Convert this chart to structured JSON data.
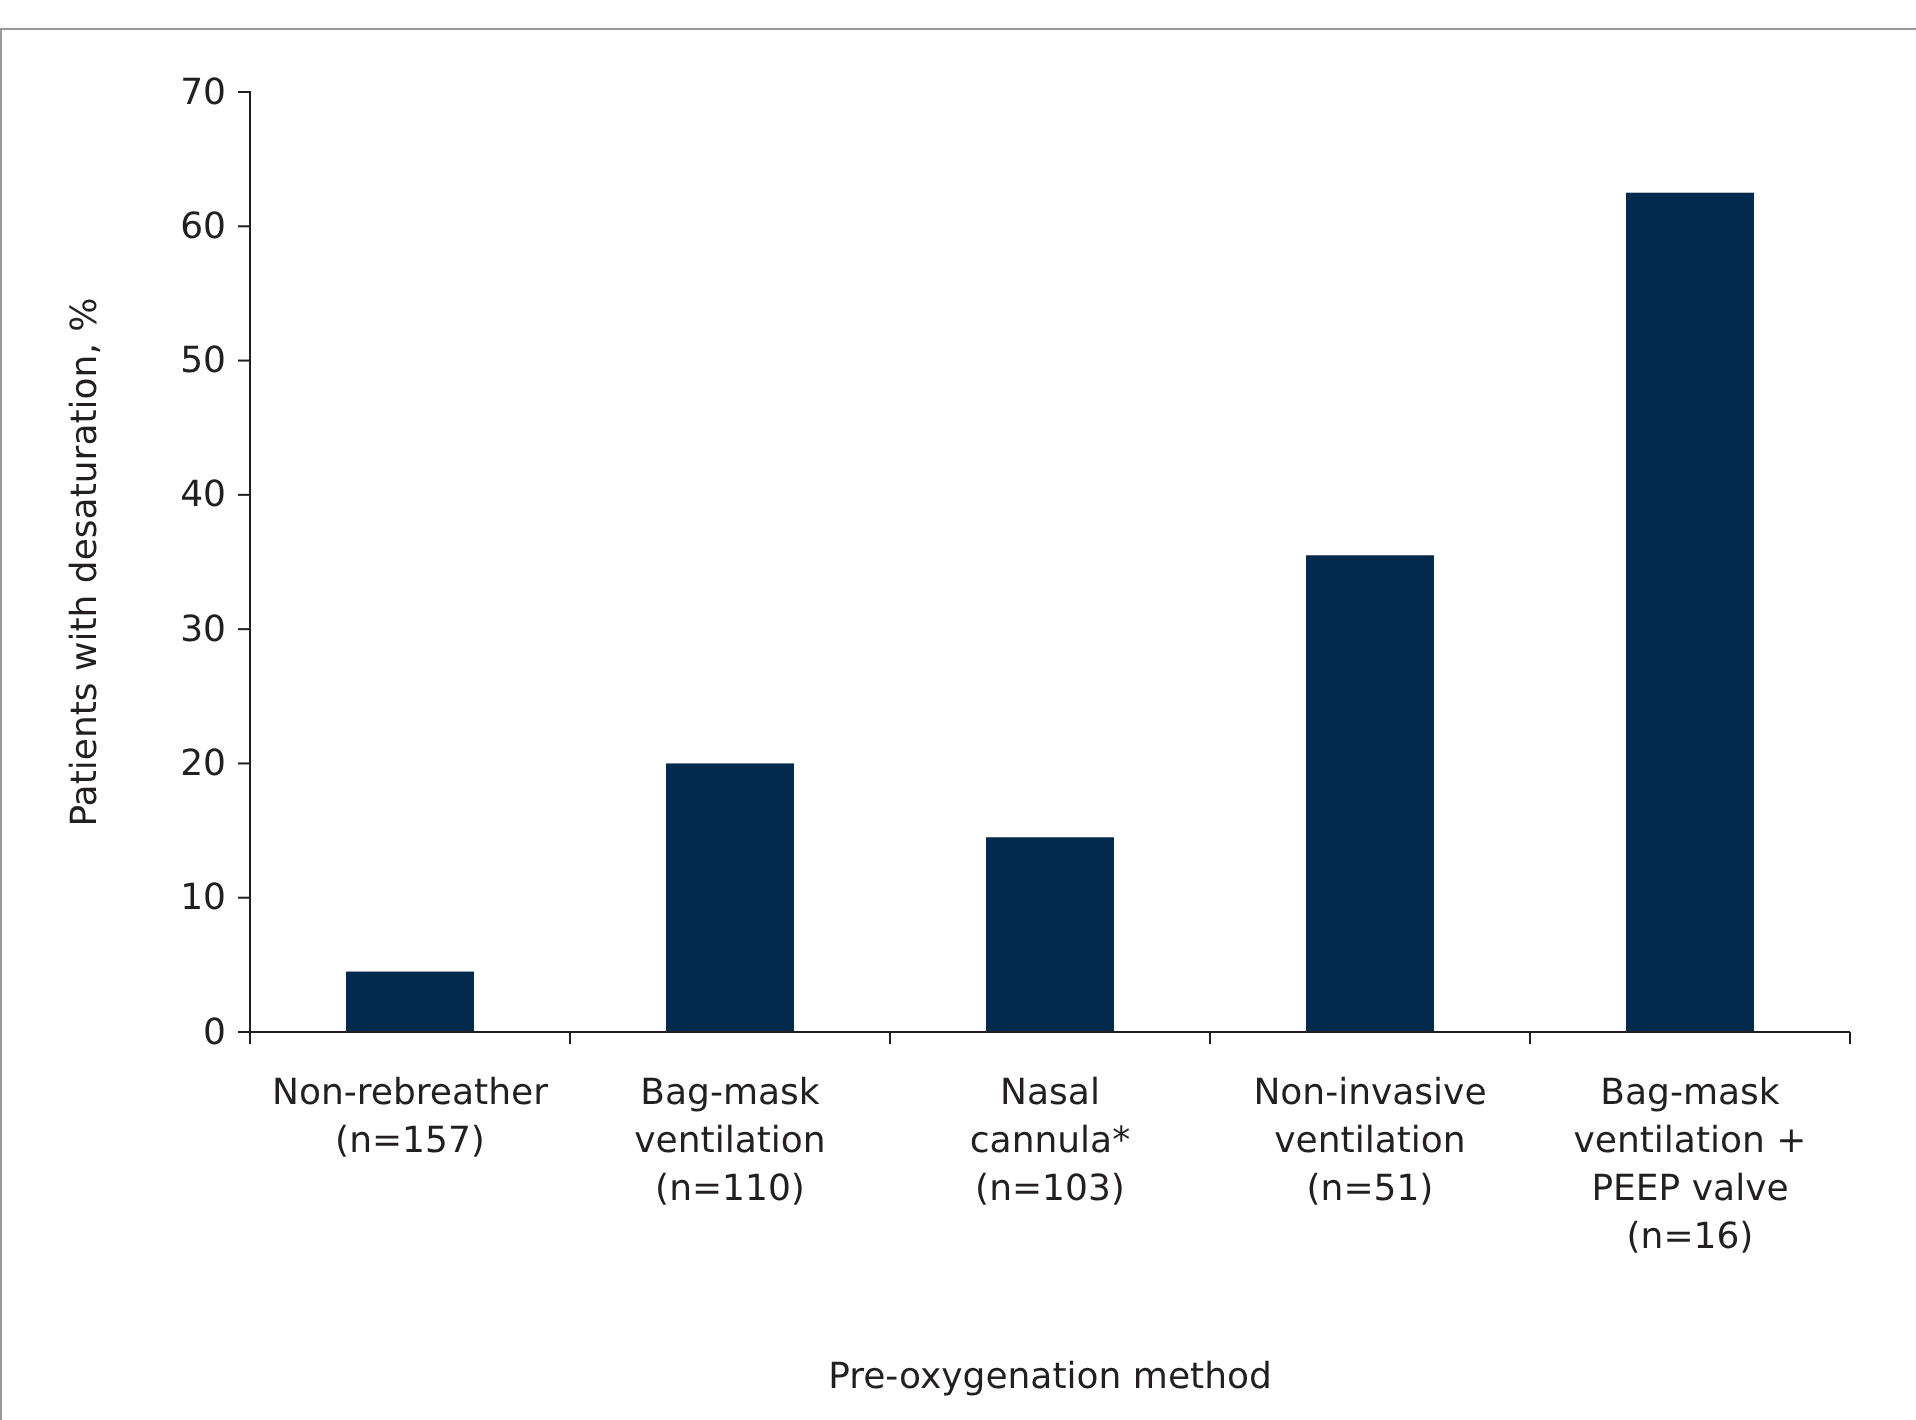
{
  "chart_data": {
    "type": "bar",
    "xlabel": "Pre-oxygenation method",
    "ylabel": "Patients with desaturation, %",
    "categories": [
      "Non-rebreather\n(n=157)",
      "Bag-mask\nventilation\n(n=110)",
      "Nasal\ncannula*\n(n=103)",
      "Non-invasive\nventilation\n(n=51)",
      "Bag-mask\nventilation +\nPEEP valve\n(n=16)"
    ],
    "values": [
      4.5,
      20,
      14.5,
      35.5,
      62.5
    ],
    "color": "#032a4d",
    "ylim": [
      0,
      70
    ],
    "yticks": [
      0,
      10,
      20,
      30,
      40,
      50,
      60,
      70
    ],
    "grid": false
  }
}
